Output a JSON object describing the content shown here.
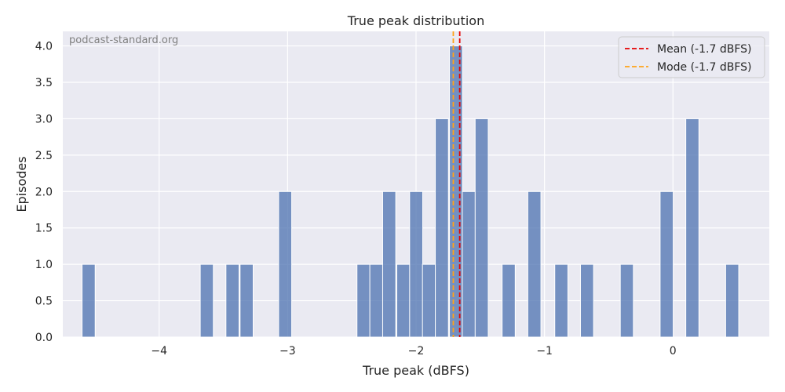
{
  "chart_data": {
    "type": "bar",
    "title": "True peak distribution",
    "xlabel": "True peak (dBFS)",
    "ylabel": "Episodes",
    "watermark": "podcast-standard.org",
    "xlim": [
      -4.75,
      0.75
    ],
    "ylim": [
      0,
      4.2
    ],
    "bin_width": 0.102,
    "x_ticks": [
      {
        "value": -4,
        "label": "−4"
      },
      {
        "value": -3,
        "label": "−3"
      },
      {
        "value": -2,
        "label": "−2"
      },
      {
        "value": -1,
        "label": "−1"
      },
      {
        "value": 0,
        "label": "0"
      }
    ],
    "y_ticks": [
      {
        "value": 0,
        "label": "0.0"
      },
      {
        "value": 0.5,
        "label": "0.5"
      },
      {
        "value": 1,
        "label": "1.0"
      },
      {
        "value": 1.5,
        "label": "1.5"
      },
      {
        "value": 2,
        "label": "2.0"
      },
      {
        "value": 2.5,
        "label": "2.5"
      },
      {
        "value": 3,
        "label": "3.0"
      },
      {
        "value": 3.5,
        "label": "3.5"
      },
      {
        "value": 4,
        "label": "4.0"
      }
    ],
    "bins": [
      {
        "start": -4.6,
        "count": 1
      },
      {
        "start": -3.68,
        "count": 1
      },
      {
        "start": -3.48,
        "count": 1
      },
      {
        "start": -3.37,
        "count": 1
      },
      {
        "start": -3.07,
        "count": 2
      },
      {
        "start": -2.46,
        "count": 1
      },
      {
        "start": -2.36,
        "count": 1
      },
      {
        "start": -2.26,
        "count": 2
      },
      {
        "start": -2.15,
        "count": 1
      },
      {
        "start": -2.05,
        "count": 2
      },
      {
        "start": -1.95,
        "count": 1
      },
      {
        "start": -1.85,
        "count": 3
      },
      {
        "start": -1.74,
        "count": 4
      },
      {
        "start": -1.64,
        "count": 2
      },
      {
        "start": -1.54,
        "count": 3
      },
      {
        "start": -1.33,
        "count": 1
      },
      {
        "start": -1.13,
        "count": 2
      },
      {
        "start": -0.92,
        "count": 1
      },
      {
        "start": -0.72,
        "count": 1
      },
      {
        "start": -0.41,
        "count": 1
      },
      {
        "start": -0.1,
        "count": 2
      },
      {
        "start": 0.1,
        "count": 3
      },
      {
        "start": 0.41,
        "count": 1
      }
    ],
    "bar_color": "#4c72b0",
    "reference_lines": [
      {
        "name": "Mean (-1.7 dBFS)",
        "value": -1.66,
        "color": "#e60000"
      },
      {
        "name": "Mode (-1.7 dBFS)",
        "value": -1.71,
        "color": "#ffa31a"
      }
    ],
    "legend_position": "top-right",
    "grid": true
  }
}
